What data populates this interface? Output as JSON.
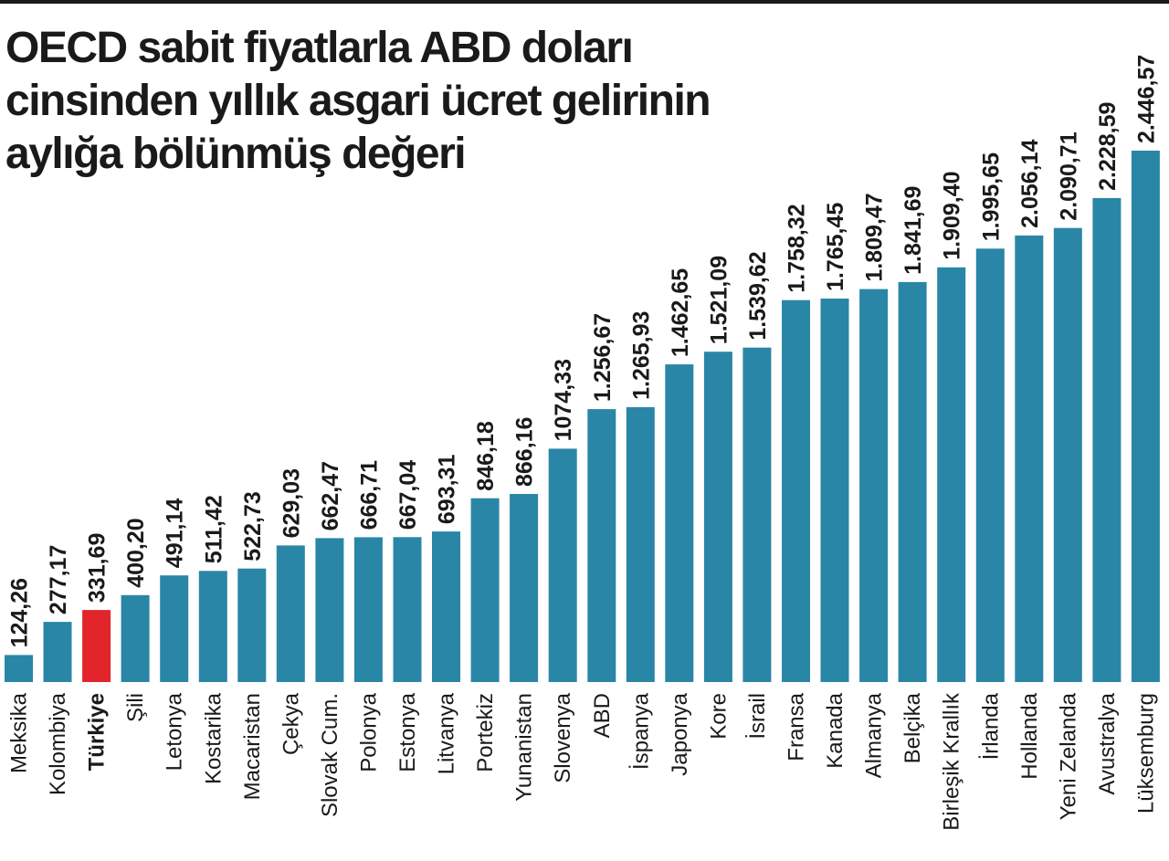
{
  "title_lines": [
    "OECD sabit fiyatlarla ABD doları",
    "cinsinden yıllık asgari ücret gelirinin",
    "aylığa bölünmüş değeri"
  ],
  "colors": {
    "bar": "#2a86a6",
    "highlight": "#e1252a",
    "text": "#1a1a1a",
    "rule": "#1a1a1a"
  },
  "chart_data": {
    "type": "bar",
    "title": "OECD sabit fiyatlarla ABD doları cinsinden yıllık asgari ücret gelirinin aylığa bölünmüş değeri",
    "xlabel": "",
    "ylabel": "",
    "ylim": [
      0,
      2446.57
    ],
    "grid": false,
    "legend": "none",
    "highlight_category": "Türkiye",
    "categories": [
      "Meksika",
      "Kolombiya",
      "Türkiye",
      "Şili",
      "Letonya",
      "Kostarika",
      "Macaristan",
      "Çekya",
      "Slovak Cum.",
      "Polonya",
      "Estonya",
      "Litvanya",
      "Portekiz",
      "Yunanistan",
      "Slovenya",
      "ABD",
      "İspanya",
      "Japonya",
      "Kore",
      "İsrail",
      "Fransa",
      "Kanada",
      "Almanya",
      "Belçika",
      "Birleşik Krallık",
      "İrlanda",
      "Hollanda",
      "Yeni Zelanda",
      "Avustralya",
      "Lüksemburg"
    ],
    "values": [
      124.26,
      277.17,
      331.69,
      400.2,
      491.14,
      511.42,
      522.73,
      629.03,
      662.47,
      666.71,
      667.04,
      693.31,
      846.18,
      866.16,
      1074.33,
      1256.67,
      1265.93,
      1462.65,
      1521.09,
      1539.62,
      1758.32,
      1765.45,
      1809.47,
      1841.69,
      1909.4,
      1995.65,
      2056.14,
      2090.71,
      2228.59,
      2446.57
    ],
    "value_labels": [
      "124,26",
      "277,17",
      "331,69",
      "400,20",
      "491,14",
      "511,42",
      "522,73",
      "629,03",
      "662,47",
      "666,71",
      "667,04",
      "693,31",
      "846,18",
      "866,16",
      "1074,33",
      "1.256,67",
      "1.265,93",
      "1.462,65",
      "1.521,09",
      "1.539,62",
      "1.758,32",
      "1.765,45",
      "1.809,47",
      "1.841,69",
      "1.909,40",
      "1.995,65",
      "2.056,14",
      "2.090,71",
      "2.228,59",
      "2.446,57"
    ]
  }
}
